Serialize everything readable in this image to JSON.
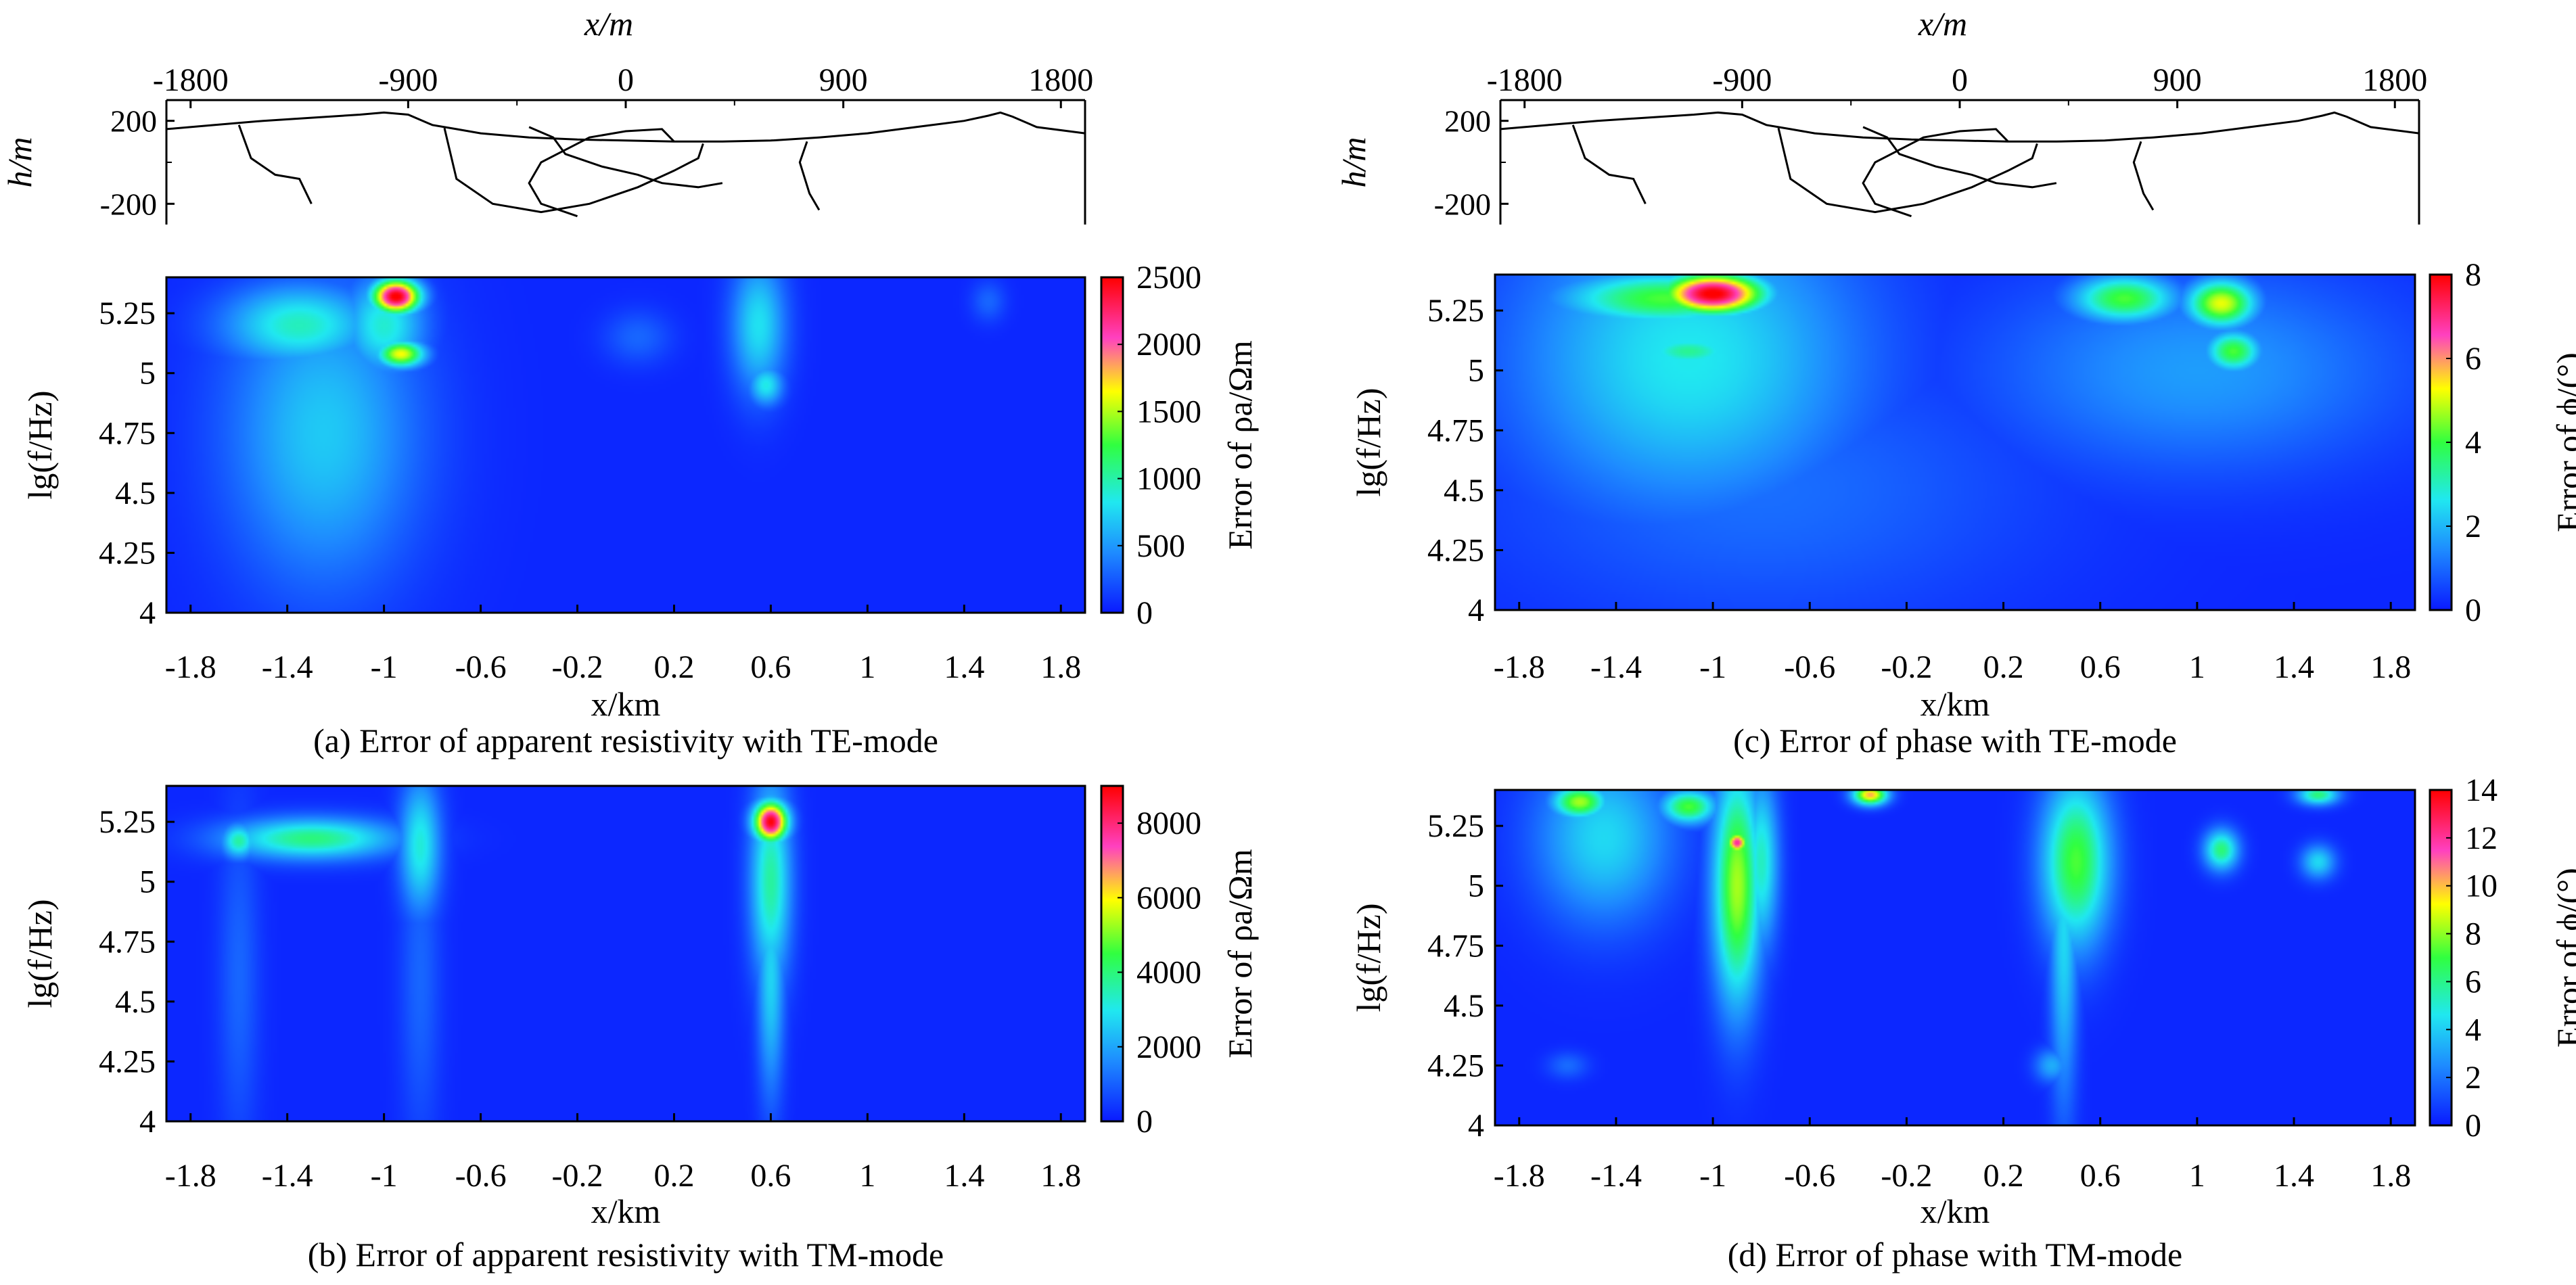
{
  "topo": {
    "xlabel": "x/m",
    "ylabel": "h/m",
    "xticks": [
      "-1800",
      "-900",
      "0",
      "900",
      "1800"
    ],
    "xtick_values": [
      -1800,
      -900,
      0,
      900,
      1800
    ],
    "yticks": [
      "200",
      "-200"
    ],
    "ytick_values": [
      200,
      -200
    ],
    "xlim": [
      -1900,
      1900
    ],
    "ylim": [
      -300,
      300
    ],
    "surface": [
      [
        -1900,
        160
      ],
      [
        -1700,
        180
      ],
      [
        -1500,
        200
      ],
      [
        -1300,
        215
      ],
      [
        -1100,
        230
      ],
      [
        -1000,
        240
      ],
      [
        -900,
        230
      ],
      [
        -800,
        180
      ],
      [
        -700,
        160
      ],
      [
        -600,
        140
      ],
      [
        -400,
        120
      ],
      [
        -200,
        110
      ],
      [
        0,
        105
      ],
      [
        200,
        100
      ],
      [
        400,
        100
      ],
      [
        600,
        105
      ],
      [
        800,
        120
      ],
      [
        1000,
        140
      ],
      [
        1200,
        170
      ],
      [
        1400,
        200
      ],
      [
        1500,
        225
      ],
      [
        1550,
        240
      ],
      [
        1600,
        220
      ],
      [
        1700,
        170
      ],
      [
        1900,
        140
      ]
    ],
    "boundaries": [
      [
        [
          -1600,
          180
        ],
        [
          -1550,
          20
        ],
        [
          -1450,
          -60
        ],
        [
          -1350,
          -80
        ],
        [
          -1300,
          -200
        ]
      ],
      [
        [
          -750,
          165
        ],
        [
          -700,
          -80
        ],
        [
          -550,
          -200
        ],
        [
          -350,
          -240
        ],
        [
          -150,
          -200
        ],
        [
          50,
          -120
        ],
        [
          200,
          -40
        ],
        [
          300,
          20
        ],
        [
          320,
          90
        ]
      ],
      [
        [
          -400,
          170
        ],
        [
          -300,
          120
        ],
        [
          -250,
          40
        ],
        [
          -100,
          -20
        ],
        [
          50,
          -60
        ],
        [
          150,
          -100
        ],
        [
          300,
          -120
        ],
        [
          400,
          -100
        ]
      ],
      [
        [
          200,
          100
        ],
        [
          150,
          160
        ],
        [
          0,
          150
        ],
        [
          -150,
          120
        ],
        [
          -250,
          60
        ],
        [
          -350,
          0
        ],
        [
          -400,
          -100
        ],
        [
          -350,
          -200
        ],
        [
          -200,
          -260
        ]
      ],
      [
        [
          750,
          100
        ],
        [
          720,
          0
        ],
        [
          760,
          -150
        ],
        [
          800,
          -230
        ]
      ]
    ]
  },
  "panels": [
    {
      "id": "a",
      "caption": "(a) Error of apparent resistivity with TE-mode",
      "xlabel": "x/km",
      "ylabel": "lg(f/Hz)",
      "xticks": [
        "-1.8",
        "-1.4",
        "-1",
        "-0.6",
        "-0.2",
        "0.2",
        "0.6",
        "1",
        "1.4",
        "1.8"
      ],
      "yticks": [
        "4",
        "4.25",
        "4.5",
        "4.75",
        "5",
        "5.25"
      ],
      "cbar_label": "Error of ρa/Ωm",
      "cbar_ticks": [
        "0",
        "500",
        "1000",
        "1500",
        "2000",
        "2500"
      ]
    },
    {
      "id": "b",
      "caption": "(b) Error of apparent resistivity with TM-mode",
      "xlabel": "x/km",
      "ylabel": "lg(f/Hz)",
      "xticks": [
        "-1.8",
        "-1.4",
        "-1",
        "-0.6",
        "-0.2",
        "0.2",
        "0.6",
        "1",
        "1.4",
        "1.8"
      ],
      "yticks": [
        "4",
        "4.25",
        "4.5",
        "4.75",
        "5",
        "5.25"
      ],
      "cbar_label": "Error of ρa/Ωm",
      "cbar_ticks": [
        "0",
        "2000",
        "4000",
        "6000",
        "8000"
      ]
    },
    {
      "id": "c",
      "caption": "(c) Error of phase with TE-mode",
      "xlabel": "x/km",
      "ylabel": "lg(f/Hz)",
      "xticks": [
        "-1.8",
        "-1.4",
        "-1",
        "-0.6",
        "-0.2",
        "0.2",
        "0.6",
        "1",
        "1.4",
        "1.8"
      ],
      "yticks": [
        "4",
        "4.25",
        "4.5",
        "4.75",
        "5",
        "5.25"
      ],
      "cbar_label": "Error of ϕ/(°)",
      "cbar_ticks": [
        "0",
        "2",
        "4",
        "6",
        "8"
      ]
    },
    {
      "id": "d",
      "caption": "(d) Error of phase with TM-mode",
      "xlabel": "x/km",
      "ylabel": "lg(f/Hz)",
      "xticks": [
        "-1.8",
        "-1.4",
        "-1",
        "-0.6",
        "-0.2",
        "0.2",
        "0.6",
        "1",
        "1.4",
        "1.8"
      ],
      "yticks": [
        "4",
        "4.25",
        "4.5",
        "4.75",
        "5",
        "5.25"
      ],
      "cbar_label": "Error of ϕ/(°)",
      "cbar_ticks": [
        "0",
        "2",
        "4",
        "6",
        "8",
        "10",
        "12",
        "14"
      ]
    }
  ],
  "chart_data": [
    {
      "type": "heatmap",
      "title": "(a) Error of apparent resistivity with TE-mode",
      "xlabel": "x/km",
      "ylabel": "lg(f/Hz)",
      "xlim": [
        -1.9,
        1.9
      ],
      "ylim": [
        4,
        5.4
      ],
      "xticks": [
        -1.8,
        -1.4,
        -1,
        -0.6,
        -0.2,
        0.2,
        0.6,
        1,
        1.4,
        1.8
      ],
      "yticks": [
        4,
        4.25,
        4.5,
        4.75,
        5,
        5.25
      ],
      "zlabel": "Error of ρa/Ωm",
      "zlim": [
        0,
        2500
      ],
      "ztick_values": [
        0,
        500,
        1000,
        1500,
        2000,
        2500
      ],
      "features": [
        {
          "x": -1.25,
          "y": 4.75,
          "sx": 0.28,
          "sy": 0.45,
          "value": 650
        },
        {
          "x": -1.35,
          "y": 5.2,
          "sx": 0.22,
          "sy": 0.12,
          "value": 900
        },
        {
          "x": -0.95,
          "y": 5.32,
          "sx": 0.07,
          "sy": 0.05,
          "value": 2500
        },
        {
          "x": -0.93,
          "y": 5.08,
          "sx": 0.07,
          "sy": 0.04,
          "value": 1600
        },
        {
          "x": -1.0,
          "y": 5.2,
          "sx": 0.12,
          "sy": 0.15,
          "value": 850
        },
        {
          "x": 0.55,
          "y": 5.2,
          "sx": 0.08,
          "sy": 0.2,
          "value": 750
        },
        {
          "x": 0.58,
          "y": 4.95,
          "sx": 0.05,
          "sy": 0.06,
          "value": 800
        },
        {
          "x": 0.05,
          "y": 5.15,
          "sx": 0.1,
          "sy": 0.08,
          "value": 250
        },
        {
          "x": 1.5,
          "y": 5.3,
          "sx": 0.05,
          "sy": 0.06,
          "value": 250
        }
      ]
    },
    {
      "type": "heatmap",
      "title": "(b) Error of apparent resistivity with TM-mode",
      "xlabel": "x/km",
      "ylabel": "lg(f/Hz)",
      "xlim": [
        -1.9,
        1.9
      ],
      "ylim": [
        4,
        5.4
      ],
      "xticks": [
        -1.8,
        -1.4,
        -1,
        -0.6,
        -0.2,
        0.2,
        0.6,
        1,
        1.4,
        1.8
      ],
      "yticks": [
        4,
        4.25,
        4.5,
        4.75,
        5,
        5.25
      ],
      "zlabel": "Error of ρa/Ωm",
      "zlim": [
        0,
        9000
      ],
      "ztick_values": [
        0,
        2000,
        4000,
        6000,
        8000
      ],
      "features": [
        {
          "x": -1.3,
          "y": 5.18,
          "sx": 0.25,
          "sy": 0.06,
          "value": 3800
        },
        {
          "x": -1.6,
          "y": 5.17,
          "sx": 0.05,
          "sy": 0.05,
          "value": 3500
        },
        {
          "x": -0.85,
          "y": 5.15,
          "sx": 0.06,
          "sy": 0.2,
          "value": 3000
        },
        {
          "x": -1.6,
          "y": 4.6,
          "sx": 0.06,
          "sy": 0.5,
          "value": 900
        },
        {
          "x": -0.85,
          "y": 4.6,
          "sx": 0.06,
          "sy": 0.5,
          "value": 900
        },
        {
          "x": 0.6,
          "y": 5.25,
          "sx": 0.05,
          "sy": 0.06,
          "value": 8800
        },
        {
          "x": 0.6,
          "y": 5.0,
          "sx": 0.06,
          "sy": 0.3,
          "value": 3500
        },
        {
          "x": 0.6,
          "y": 4.6,
          "sx": 0.04,
          "sy": 0.35,
          "value": 2500
        }
      ]
    },
    {
      "type": "heatmap",
      "title": "(c) Error of phase with TE-mode",
      "xlabel": "x/km",
      "ylabel": "lg(f/Hz)",
      "xlim": [
        -1.9,
        1.9
      ],
      "ylim": [
        4,
        5.4
      ],
      "xticks": [
        -1.8,
        -1.4,
        -1,
        -0.6,
        -0.2,
        0.2,
        0.6,
        1,
        1.4,
        1.8
      ],
      "yticks": [
        4,
        4.25,
        4.5,
        4.75,
        5,
        5.25
      ],
      "zlabel": "Error of ϕ/(°)",
      "zlim": [
        0,
        8
      ],
      "ztick_values": [
        0,
        2,
        4,
        6,
        8
      ],
      "features": [
        {
          "x": -1.1,
          "y": 5.05,
          "sx": 0.5,
          "sy": 0.45,
          "value": 2.5
        },
        {
          "x": -1.0,
          "y": 5.32,
          "sx": 0.15,
          "sy": 0.06,
          "value": 8
        },
        {
          "x": -1.2,
          "y": 5.3,
          "sx": 0.3,
          "sy": 0.08,
          "value": 4
        },
        {
          "x": -1.1,
          "y": 5.08,
          "sx": 0.15,
          "sy": 0.05,
          "value": 3.2
        },
        {
          "x": 0.7,
          "y": 5.3,
          "sx": 0.15,
          "sy": 0.07,
          "value": 4
        },
        {
          "x": 1.1,
          "y": 5.28,
          "sx": 0.1,
          "sy": 0.07,
          "value": 5
        },
        {
          "x": 1.15,
          "y": 5.08,
          "sx": 0.08,
          "sy": 0.06,
          "value": 4
        },
        {
          "x": 1.0,
          "y": 5.0,
          "sx": 0.6,
          "sy": 0.3,
          "value": 1.5
        },
        {
          "x": -0.8,
          "y": 4.5,
          "sx": 0.8,
          "sy": 0.4,
          "value": 0.9
        }
      ]
    },
    {
      "type": "heatmap",
      "title": "(d) Error of phase with TM-mode",
      "xlabel": "x/km",
      "ylabel": "lg(f/Hz)",
      "xlim": [
        -1.9,
        1.9
      ],
      "ylim": [
        4,
        5.4
      ],
      "xticks": [
        -1.8,
        -1.4,
        -1,
        -0.6,
        -0.2,
        0.2,
        0.6,
        1,
        1.4,
        1.8
      ],
      "yticks": [
        4,
        4.25,
        4.5,
        4.75,
        5,
        5.25
      ],
      "zlabel": "Error of ϕ/(°)",
      "zlim": [
        0,
        14
      ],
      "ztick_values": [
        0,
        2,
        4,
        6,
        8,
        10,
        12,
        14
      ],
      "features": [
        {
          "x": -1.45,
          "y": 5.2,
          "sx": 0.2,
          "sy": 0.25,
          "value": 4
        },
        {
          "x": -1.55,
          "y": 5.35,
          "sx": 0.08,
          "sy": 0.05,
          "value": 8
        },
        {
          "x": -1.1,
          "y": 5.33,
          "sx": 0.08,
          "sy": 0.05,
          "value": 7
        },
        {
          "x": -0.9,
          "y": 5.0,
          "sx": 0.07,
          "sy": 0.35,
          "value": 8
        },
        {
          "x": -0.9,
          "y": 5.18,
          "sx": 0.03,
          "sy": 0.03,
          "value": 12
        },
        {
          "x": -0.8,
          "y": 5.1,
          "sx": 0.05,
          "sy": 0.25,
          "value": 5
        },
        {
          "x": -0.35,
          "y": 5.38,
          "sx": 0.05,
          "sy": 0.03,
          "value": 10
        },
        {
          "x": 0.5,
          "y": 5.1,
          "sx": 0.1,
          "sy": 0.25,
          "value": 7
        },
        {
          "x": 0.45,
          "y": 4.8,
          "sx": 0.04,
          "sy": 0.5,
          "value": 4
        },
        {
          "x": 1.1,
          "y": 5.15,
          "sx": 0.05,
          "sy": 0.06,
          "value": 6
        },
        {
          "x": 1.5,
          "y": 5.1,
          "sx": 0.05,
          "sy": 0.05,
          "value": 4
        },
        {
          "x": 1.5,
          "y": 5.38,
          "sx": 0.06,
          "sy": 0.03,
          "value": 6
        }
      ]
    }
  ]
}
